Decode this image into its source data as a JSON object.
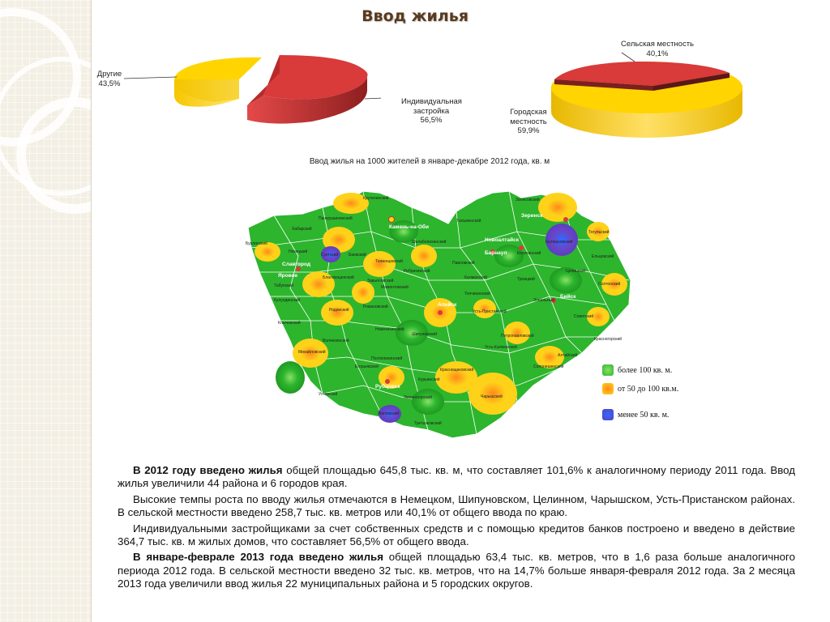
{
  "title": "Ввод жилья",
  "pie_left": {
    "slices": [
      {
        "label_1": "Индивидуальная",
        "label_2": "застройка",
        "value_text": "56,5%",
        "value": 56.5,
        "color": "#d93a3a"
      },
      {
        "label_1": "Другие",
        "label_2": "",
        "value_text": "43,5%",
        "value": 43.5,
        "color": "#ffd400"
      }
    ]
  },
  "pie_right": {
    "slices": [
      {
        "label_1": "Сельская местность",
        "label_2": "",
        "value_text": "40,1%",
        "value": 40.1,
        "color": "#d93a3a"
      },
      {
        "label_1": "Городская",
        "label_2": "местность",
        "value_text": "59,9%",
        "value": 59.9,
        "color": "#ffd400"
      }
    ]
  },
  "map": {
    "caption": "Ввод жилья на 1000 жителей в январе-декабре 2012 года, кв. м",
    "colors": {
      "high": "#2db52d",
      "mid": "#ffd21a",
      "low": "#5a3fc0",
      "border": "#ffffff"
    },
    "region_labels": [
      "Крутихинский",
      "Залесовский",
      "Панкрушихинский",
      "Тальменский",
      "Зеринск",
      "Хабарский",
      "Камень-на-Оби",
      "Тогульский",
      "Бурлинский",
      "Немецкий",
      "Суетский",
      "Баевский",
      "Шелаболихинский",
      "Новоалтайск",
      "Кытмановский",
      "Славгород",
      "Тюменцевский",
      "Барнаул",
      "Косихинский",
      "Ельцовский",
      "Яровое",
      "Благовещенский",
      "Ребрихинский",
      "Павловский",
      "Целинный",
      "Табунский",
      "Завьяловский",
      "Мамонтовский",
      "Калманский",
      "Троицкий",
      "Солтонский",
      "Кулундинский",
      "Родинский",
      "Романовский",
      "Алейск",
      "Топчихинский",
      "Зональный",
      "Бийск",
      "Ключевский",
      "Усть-Пристанский",
      "Советский",
      "Волчихинский",
      "Новичихинский",
      "Шипуновский",
      "Петропавловский",
      "Красногорский",
      "Михайловский",
      "Поспелихинский",
      "Белокуриха",
      "Егорьевский",
      "Усть-Калманский",
      "Алтайский",
      "Рубцовск",
      "Курьинский",
      "Солонешенский",
      "Угловский",
      "Краснощековский",
      "Чарышский",
      "Локтевский",
      "Змеиногорский",
      "Третьяковский"
    ]
  },
  "legend": [
    {
      "label": "более 100 кв. м.",
      "color": "#2db52d"
    },
    {
      "label": "от  50 до 100 кв.м.",
      "color": "#ffd21a"
    },
    {
      "label": "менее 50  кв. м.",
      "color": "#5a3fc0"
    }
  ],
  "paragraphs": [
    {
      "bold": "В 2012 году введено жилья",
      "text": " общей площадью 645,8 тыс. кв. м, что составляет 101,6% к аналогичному периоду 2011 года. Ввод жилья увеличили 44 района и 6 городов края."
    },
    {
      "bold": "",
      "text": "Высокие темпы роста по вводу жилья отмечаются в Немецком, Шипуновском, Целинном, Чарышском, Усть-Пристанском районах. В сельской местности введено 258,7 тыс. кв. метров или 40,1% от общего ввода по краю."
    },
    {
      "bold": "",
      "text": "Индивидуальными застройщиками за счет собственных средств и с помощью кредитов банков построено и введено в действие 364,7 тыс. кв. м жилых домов, что составляет 56,5% от общего ввода."
    },
    {
      "bold": "В январе-феврале 2013 года введено жилья",
      "text": " общей площадью 63,4 тыс. кв. метров, что в 1,6 раза больше аналогичного периода 2012 года. В сельской местности введено 32 тыс. кв. метров, что на 14,7% больше января-февраля 2012 года. За 2 месяца 2013 года увеличили ввод жилья 22 муниципальных района  и 5 городских округов."
    }
  ]
}
